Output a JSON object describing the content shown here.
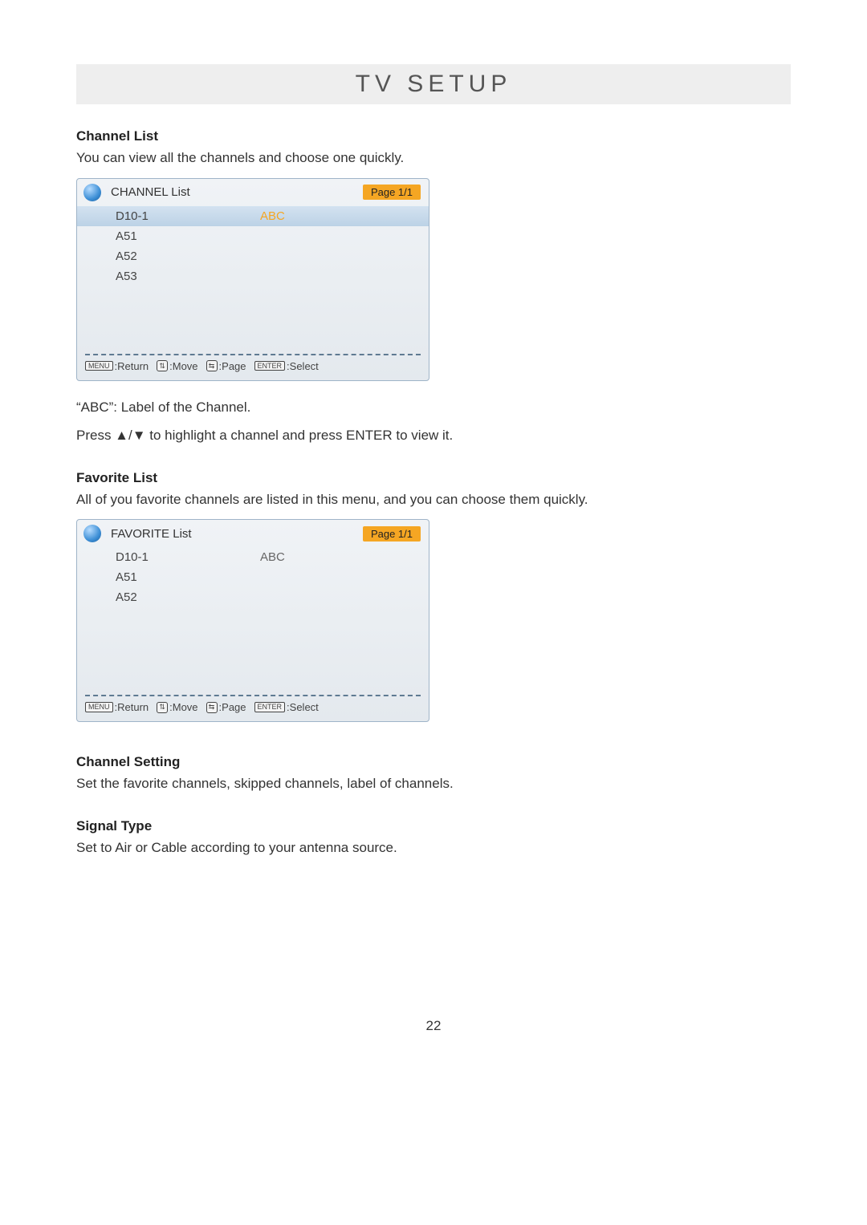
{
  "page": {
    "title": "TV SETUP",
    "number": "22"
  },
  "section1": {
    "heading": "Channel List",
    "desc": "You can view all the channels and choose one quickly.",
    "note1": "“ABC”: Label of the Channel.",
    "note2": "Press ▲/▼ to highlight a channel and press ENTER to view it."
  },
  "osd1": {
    "title": "CHANNEL List",
    "page": "Page 1/1",
    "rows": [
      {
        "ch": "D10-1",
        "label": "ABC",
        "highlight": true
      },
      {
        "ch": "A51",
        "label": "",
        "highlight": false
      },
      {
        "ch": "A52",
        "label": "",
        "highlight": false
      },
      {
        "ch": "A53",
        "label": "",
        "highlight": false
      }
    ]
  },
  "section2": {
    "heading": "Favorite List",
    "desc": "All of you favorite channels are listed in this menu, and you can choose them quickly."
  },
  "osd2": {
    "title": "FAVORITE List",
    "page": "Page 1/1",
    "rows": [
      {
        "ch": "D10-1",
        "label": "ABC",
        "highlight": false
      },
      {
        "ch": "A51",
        "label": "",
        "highlight": false
      },
      {
        "ch": "A52",
        "label": "",
        "highlight": false
      }
    ]
  },
  "hints": {
    "menu_key": "MENU",
    "menu_txt": ":Return",
    "move_txt": ":Move",
    "page_txt": ":Page",
    "enter_key": "ENTER",
    "enter_txt": ":Select"
  },
  "section3": {
    "heading": "Channel Setting",
    "desc": "Set the favorite channels, skipped channels, label of channels."
  },
  "section4": {
    "heading": "Signal Type",
    "desc": "Set to Air or Cable according to your antenna source."
  }
}
